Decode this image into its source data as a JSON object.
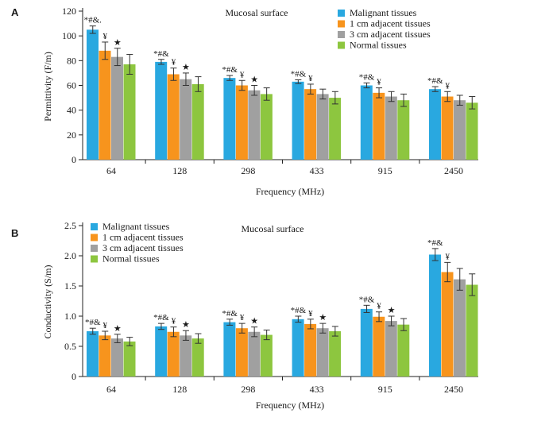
{
  "chart_data": [
    {
      "panel": "A",
      "type": "bar",
      "title": "Mucosal surface",
      "xlabel": "Frequency (MHz)",
      "ylabel": "Permittivity (F/m)",
      "ylim": [
        0,
        120
      ],
      "yticks": [
        0,
        20,
        40,
        60,
        80,
        100,
        120
      ],
      "categories": [
        "64",
        "128",
        "298",
        "433",
        "915",
        "2450"
      ],
      "legend_position": "top-right",
      "series": [
        {
          "name": "Malignant tissues",
          "color": "#29a8e0",
          "values": [
            105,
            79,
            66,
            63,
            60,
            57
          ],
          "errors": [
            3,
            2,
            2,
            1.5,
            2,
            2
          ]
        },
        {
          "name": "1 cm adjacent tissues",
          "color": "#f7941d",
          "values": [
            88,
            69,
            60,
            57,
            54,
            51
          ],
          "errors": [
            7,
            5,
            4,
            4,
            4,
            4
          ]
        },
        {
          "name": "3 cm adjacent tissues",
          "color": "#a0a0a0",
          "values": [
            83,
            65,
            56,
            53,
            51,
            48
          ],
          "errors": [
            7,
            5,
            4,
            4,
            4,
            4
          ]
        },
        {
          "name": "Normal tissues",
          "color": "#8dc63f",
          "values": [
            77,
            61,
            53,
            50,
            48,
            46
          ],
          "errors": [
            8,
            6,
            5,
            5,
            5,
            5
          ]
        }
      ],
      "annotations": [
        {
          "category": "64",
          "series": 0,
          "text": "*#&."
        },
        {
          "category": "64",
          "series": 1,
          "text": "¥"
        },
        {
          "category": "64",
          "series": 2,
          "text": "★"
        },
        {
          "category": "128",
          "series": 0,
          "text": "*#&"
        },
        {
          "category": "128",
          "series": 1,
          "text": "¥"
        },
        {
          "category": "128",
          "series": 2,
          "text": "★"
        },
        {
          "category": "298",
          "series": 0,
          "text": "*#&"
        },
        {
          "category": "298",
          "series": 1,
          "text": "¥"
        },
        {
          "category": "298",
          "series": 2,
          "text": "★"
        },
        {
          "category": "433",
          "series": 0,
          "text": "*#&"
        },
        {
          "category": "433",
          "series": 1,
          "text": "¥"
        },
        {
          "category": "915",
          "series": 0,
          "text": "*#&"
        },
        {
          "category": "915",
          "series": 1,
          "text": "¥"
        },
        {
          "category": "2450",
          "series": 0,
          "text": "*#&"
        },
        {
          "category": "2450",
          "series": 1,
          "text": "¥"
        }
      ]
    },
    {
      "panel": "B",
      "type": "bar",
      "title": "Mucosal surface",
      "xlabel": "Frequency (MHz)",
      "ylabel": "Conductivity (S/m)",
      "ylim": [
        0,
        2.5
      ],
      "yticks": [
        0,
        0.5,
        1.0,
        1.5,
        2.0,
        2.5
      ],
      "ytick_labels": [
        "0",
        "0.5",
        "1.0",
        "1.5",
        "2.0",
        "2.5"
      ],
      "categories": [
        "64",
        "128",
        "298",
        "433",
        "915",
        "2450"
      ],
      "legend_position": "top-left",
      "series": [
        {
          "name": "Malignant tissues",
          "color": "#29a8e0",
          "values": [
            0.75,
            0.83,
            0.9,
            0.95,
            1.12,
            2.02
          ],
          "errors": [
            0.05,
            0.05,
            0.05,
            0.05,
            0.06,
            0.1
          ]
        },
        {
          "name": "1 cm adjacent tissues",
          "color": "#f7941d",
          "values": [
            0.68,
            0.74,
            0.8,
            0.87,
            0.99,
            1.73
          ],
          "errors": [
            0.07,
            0.08,
            0.08,
            0.08,
            0.08,
            0.16
          ]
        },
        {
          "name": "3 cm adjacent tissues",
          "color": "#a0a0a0",
          "values": [
            0.63,
            0.68,
            0.74,
            0.8,
            0.92,
            1.61
          ],
          "errors": [
            0.07,
            0.08,
            0.08,
            0.08,
            0.08,
            0.18
          ]
        },
        {
          "name": "Normal tissues",
          "color": "#8dc63f",
          "values": [
            0.58,
            0.63,
            0.69,
            0.75,
            0.86,
            1.52
          ],
          "errors": [
            0.07,
            0.08,
            0.08,
            0.08,
            0.1,
            0.18
          ]
        }
      ],
      "annotations": [
        {
          "category": "64",
          "series": 0,
          "text": "*#&"
        },
        {
          "category": "64",
          "series": 1,
          "text": "¥"
        },
        {
          "category": "64",
          "series": 2,
          "text": "★"
        },
        {
          "category": "128",
          "series": 0,
          "text": "*#&"
        },
        {
          "category": "128",
          "series": 1,
          "text": "¥"
        },
        {
          "category": "128",
          "series": 2,
          "text": "★"
        },
        {
          "category": "298",
          "series": 0,
          "text": "*#&"
        },
        {
          "category": "298",
          "series": 1,
          "text": "¥"
        },
        {
          "category": "298",
          "series": 2,
          "text": "★"
        },
        {
          "category": "433",
          "series": 0,
          "text": "*#&"
        },
        {
          "category": "433",
          "series": 1,
          "text": "¥"
        },
        {
          "category": "433",
          "series": 2,
          "text": "★"
        },
        {
          "category": "915",
          "series": 0,
          "text": "*#&"
        },
        {
          "category": "915",
          "series": 1,
          "text": "¥"
        },
        {
          "category": "915",
          "series": 2,
          "text": "★"
        },
        {
          "category": "2450",
          "series": 0,
          "text": "*#&"
        },
        {
          "category": "2450",
          "series": 1,
          "text": "¥"
        }
      ]
    }
  ]
}
